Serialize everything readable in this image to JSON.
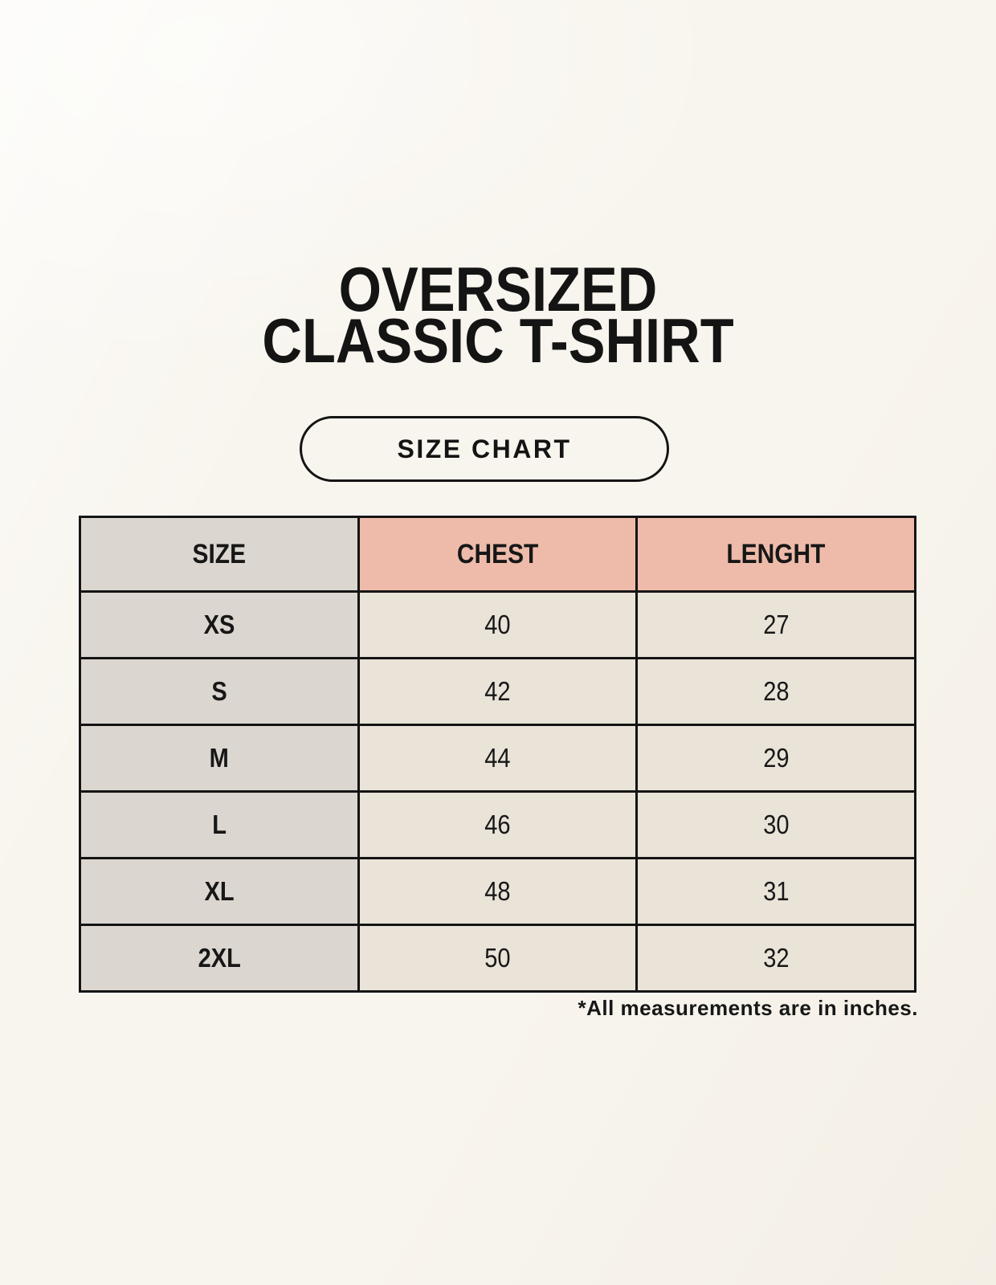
{
  "page": {
    "title_line1": "OVERSIZED",
    "title_line2": "CLASSIC T-SHIRT",
    "badge_label": "SIZE CHART",
    "footnote": "*All measurements are in inches."
  },
  "colors": {
    "page_background": "#f8f5ee",
    "size_column_bg": "#dcd6d0",
    "accent_header_bg": "#eebbaa",
    "data_cell_bg": "#e9e3d8",
    "table_border": "#141414",
    "text": "#171717"
  },
  "chart_data": {
    "type": "table",
    "title": "OVERSIZED CLASSIC T-SHIRT",
    "columns": [
      "SIZE",
      "CHEST",
      "LENGHT"
    ],
    "rows": [
      [
        "XS",
        "40",
        "27"
      ],
      [
        "S",
        "42",
        "28"
      ],
      [
        "M",
        "44",
        "29"
      ],
      [
        "L",
        "46",
        "30"
      ],
      [
        "XL",
        "48",
        "31"
      ],
      [
        "2XL",
        "50",
        "32"
      ]
    ],
    "units_note": "*All measurements are in inches.",
    "layout": {
      "grid": "on",
      "header_accent_columns": [
        "CHEST",
        "LENGHT"
      ]
    }
  }
}
